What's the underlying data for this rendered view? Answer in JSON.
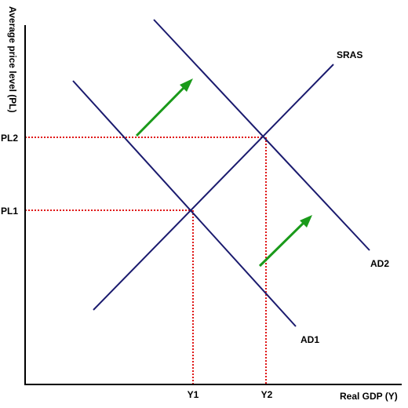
{
  "diagram": {
    "y_axis_label": "Average price level (PL)",
    "x_axis_label": "Real GDP (Y)",
    "curves": {
      "sras": "SRAS",
      "ad1": "AD1",
      "ad2": "AD2"
    },
    "price_levels": [
      "PL2",
      "PL1"
    ],
    "outputs": [
      "Y1",
      "Y2"
    ],
    "colors": {
      "curve": "#1a1a6e",
      "guide": "#e01818",
      "arrow": "#1a9a1a",
      "axis": "#000000"
    }
  }
}
